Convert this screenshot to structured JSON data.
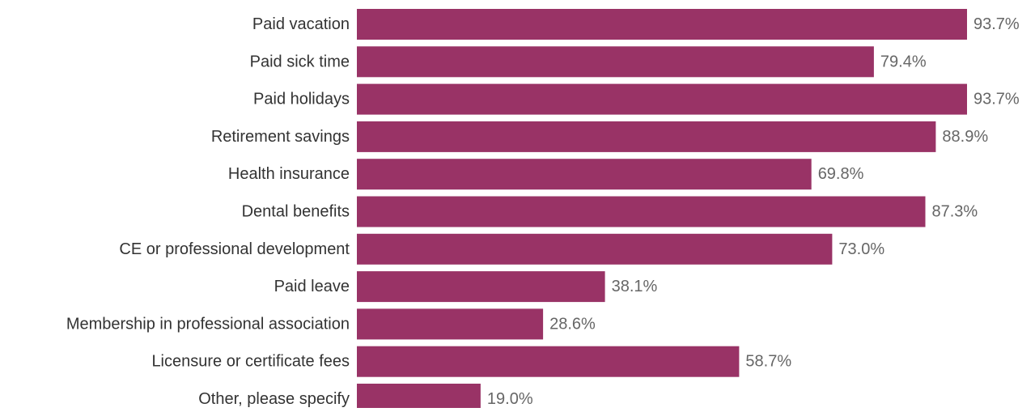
{
  "chart_data": {
    "type": "bar",
    "orientation": "horizontal",
    "categories": [
      "Paid vacation",
      "Paid sick time",
      "Paid holidays",
      "Retirement savings",
      "Health insurance",
      "Dental benefits",
      "CE or professional development",
      "Paid leave",
      "Membership in professional association",
      "Licensure or certificate fees",
      "Other, please specify"
    ],
    "values": [
      93.7,
      79.4,
      93.7,
      88.9,
      69.8,
      87.3,
      73.0,
      38.1,
      28.6,
      58.7,
      19.0
    ],
    "value_labels": [
      "93.7%",
      "79.4%",
      "93.7%",
      "88.9%",
      "69.8%",
      "87.3%",
      "73.0%",
      "38.1%",
      "28.6%",
      "58.7%",
      "19.0%"
    ],
    "unit": "%",
    "xlim": [
      0,
      100
    ],
    "grid": false,
    "bar_color": "#993366",
    "label_color": "#333333",
    "value_label_color": "#666666"
  }
}
